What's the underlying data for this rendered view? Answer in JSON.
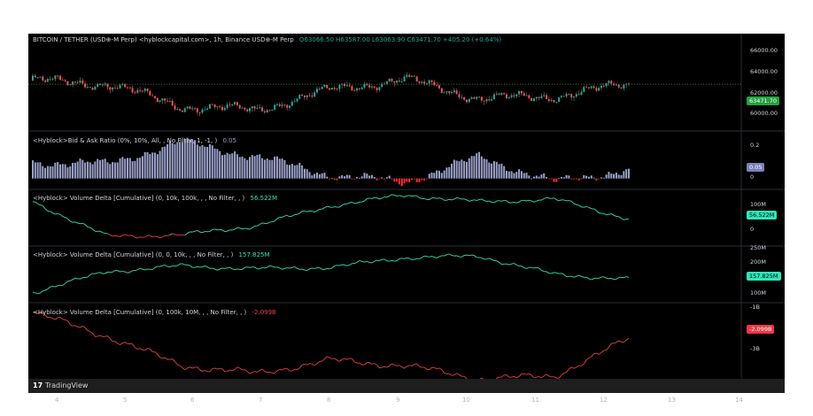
{
  "colors": {
    "bg": "#000000",
    "up": "#26a69a",
    "down": "#ef5350",
    "bar_pos": "#9aa0c8",
    "bar_neg": "#ff2d2d",
    "cum_pos": "#2ee6b8",
    "cum_neg": "#e8433a",
    "price_tag": "#22a33d",
    "ratio_tag": "#7a80b8",
    "vd1_tag": "#2ee6b8",
    "vd2_tag": "#2ee6b8",
    "vd3_tag": "#f23645"
  },
  "panes": {
    "price": {
      "title": "BITCOIN / TETHER (USD⊕-M Perp) <hyblockcapital.com>, 1h, Binance USD⊕-M Perp",
      "ohlc": "O63066.50 H63587.00 L63063.90 C63471.70 +405.20 (+0.64%)",
      "ticks": [
        "66000.00",
        "64000.00",
        "62000.00",
        "60000.00"
      ],
      "last": "63471.70"
    },
    "ratio": {
      "title": "<Hyblock>Bid & Ask Ratio (0%, 10%, All, , No Filter, 1, -1, )",
      "value": "0.05",
      "ticks": [
        "0.2",
        "0"
      ],
      "last": "0.05"
    },
    "vd1": {
      "title": "<Hyblock> Volume Delta [Cumulative] (0, 10k, 100k, , , No Filter, , )",
      "value": "56.522M",
      "ticks": [
        "100M",
        "0"
      ],
      "last": "56.522M"
    },
    "vd2": {
      "title": "<Hyblock> Volume Delta [Cumulative] (0, 0, 10k, , , No Filter, , )",
      "value": "157.825M",
      "ticks": [
        "250M",
        "200M",
        "100M"
      ],
      "last": "157.825M"
    },
    "vd3": {
      "title": "<Hyblock> Volume Delta [Cumulative] (0, 100k, 10M, , , No Filter, , )",
      "value": "-2.099B",
      "ticks": [
        "-1B",
        "-3B"
      ],
      "last": "-2.099B"
    }
  },
  "x_ticks": [
    "4",
    "5",
    "6",
    "7",
    "8",
    "9",
    "10",
    "11",
    "12",
    "13",
    "14"
  ],
  "footer": {
    "brand": "TradingView"
  },
  "chart_data": [
    {
      "type": "candlestick",
      "title": "BITCOIN / TETHER (USD⊕-M Perp)",
      "x": [
        "4",
        "5",
        "6",
        "7",
        "8",
        "9",
        "10",
        "11",
        "12"
      ],
      "close": [
        63800,
        63500,
        61500,
        61200,
        63000,
        63900,
        62200,
        62400,
        63471.7
      ],
      "ylim": [
        59500,
        67000
      ]
    },
    {
      "type": "bar",
      "title": "<Hyblock>Bid & Ask Ratio",
      "x": [
        "4",
        "5",
        "6",
        "7",
        "8",
        "9",
        "10",
        "11",
        "12"
      ],
      "values": [
        0.09,
        0.08,
        0.2,
        0.12,
        0.02,
        -0.02,
        0.12,
        -0.02,
        0.05
      ],
      "ylim": [
        -0.05,
        0.25
      ]
    },
    {
      "type": "line",
      "title": "<Hyblock> Volume Delta [Cumulative] (0, 10k, 100k)",
      "x": [
        "4",
        "5",
        "6",
        "7",
        "8",
        "9",
        "10",
        "11",
        "12"
      ],
      "values": [
        120,
        -10,
        -5,
        30,
        105,
        145,
        120,
        130,
        56.522
      ],
      "ylim": [
        -40,
        160
      ]
    },
    {
      "type": "line",
      "title": "<Hyblock> Volume Delta [Cumulative] (0, 0, 10k)",
      "x": [
        "4",
        "5",
        "6",
        "7",
        "8",
        "9",
        "10",
        "11",
        "12"
      ],
      "values": [
        110,
        185,
        205,
        195,
        200,
        235,
        240,
        175,
        157.825
      ],
      "ylim": [
        80,
        270
      ]
    },
    {
      "type": "line",
      "title": "<Hyblock> Volume Delta [Cumulative] (0, 100k, 10M)",
      "x": [
        "4",
        "5",
        "6",
        "7",
        "8",
        "9",
        "10",
        "11",
        "12"
      ],
      "values": [
        -1.1,
        -2.0,
        -3.1,
        -3.4,
        -2.9,
        -3.1,
        -3.6,
        -3.5,
        -2.099
      ],
      "ylim": [
        -4.0,
        -0.8
      ]
    }
  ]
}
